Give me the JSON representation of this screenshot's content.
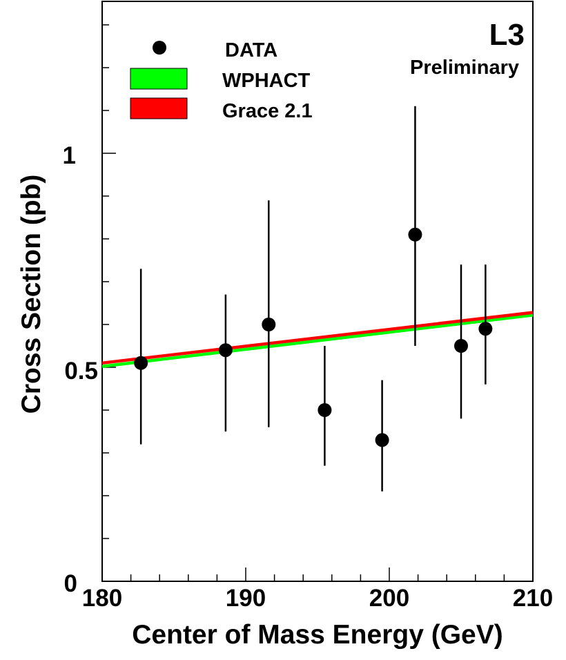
{
  "chart_data": {
    "type": "scatter",
    "title": "",
    "experiment_label": "L3",
    "status_label": "Preliminary",
    "xlabel": "Center of Mass Energy (GeV)",
    "ylabel": "Cross Section (pb)",
    "xlim": [
      180,
      210
    ],
    "ylim": [
      0,
      1.3
    ],
    "x_ticks": [
      180,
      190,
      200,
      210
    ],
    "x_tick_labels": [
      "180",
      "190",
      "200",
      "210"
    ],
    "y_ticks": [
      0,
      0.5,
      1
    ],
    "y_tick_labels": [
      "0",
      "0.5",
      "1"
    ],
    "grid": false,
    "legend_position": "top-left",
    "legend": [
      {
        "label": "DATA",
        "kind": "marker",
        "color": "#000000"
      },
      {
        "label": "WPHACT",
        "kind": "band",
        "color": "#00ff00"
      },
      {
        "label": "Grace 2.1",
        "kind": "band",
        "color": "#ff0000"
      }
    ],
    "data_points": [
      {
        "x": 182.7,
        "y": 0.51,
        "yerr_low": 0.19,
        "yerr_high": 0.22
      },
      {
        "x": 188.6,
        "y": 0.54,
        "yerr_low": 0.19,
        "yerr_high": 0.13
      },
      {
        "x": 191.6,
        "y": 0.6,
        "yerr_low": 0.24,
        "yerr_high": 0.29
      },
      {
        "x": 195.5,
        "y": 0.4,
        "yerr_low": 0.13,
        "yerr_high": 0.15
      },
      {
        "x": 199.5,
        "y": 0.33,
        "yerr_low": 0.12,
        "yerr_high": 0.14
      },
      {
        "x": 201.8,
        "y": 0.81,
        "yerr_low": 0.26,
        "yerr_high": 0.3
      },
      {
        "x": 205.0,
        "y": 0.55,
        "yerr_low": 0.17,
        "yerr_high": 0.19
      },
      {
        "x": 206.7,
        "y": 0.59,
        "yerr_low": 0.13,
        "yerr_high": 0.15
      }
    ],
    "series": [
      {
        "name": "WPHACT",
        "color": "#00ff00",
        "x": [
          180,
          210
        ],
        "y": [
          0.502,
          0.622
        ]
      },
      {
        "name": "Grace 2.1",
        "color": "#ff0000",
        "x": [
          180,
          210
        ],
        "y": [
          0.51,
          0.628
        ]
      }
    ]
  }
}
